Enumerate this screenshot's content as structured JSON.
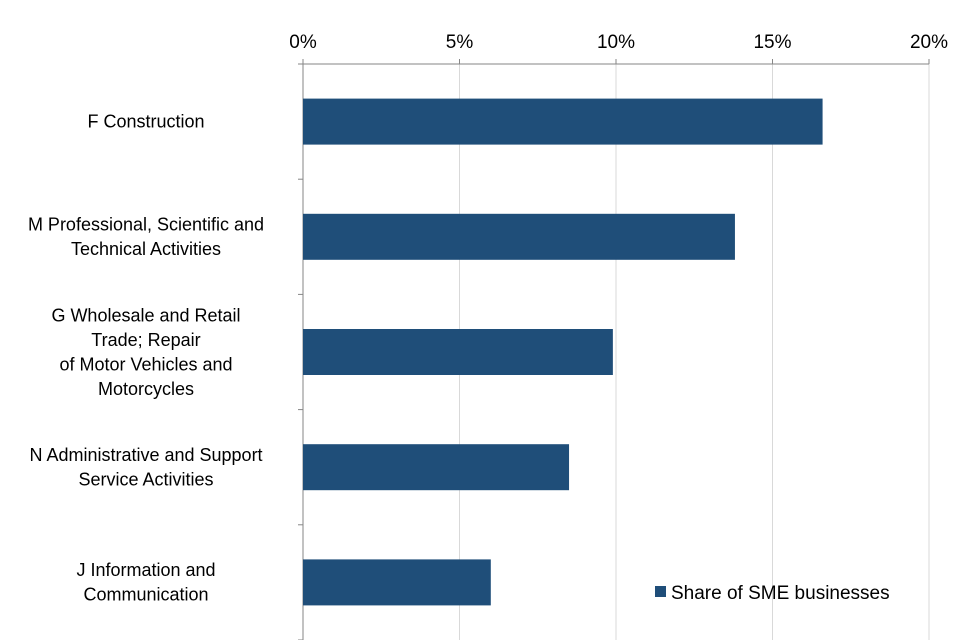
{
  "chart_data": {
    "type": "bar",
    "orientation": "horizontal",
    "title": "",
    "xlabel": "",
    "ylabel": "",
    "xlim": [
      0,
      20
    ],
    "x_axis_position": "top",
    "grid": true,
    "legend_position": "bottom-right",
    "ticks": [
      {
        "value": 0,
        "label": "0%"
      },
      {
        "value": 5,
        "label": "5%"
      },
      {
        "value": 10,
        "label": "10%"
      },
      {
        "value": 15,
        "label": "15%"
      },
      {
        "value": 20,
        "label": "20%"
      }
    ],
    "categories": [
      {
        "lines": [
          "F Construction"
        ]
      },
      {
        "lines": [
          "M Professional, Scientific and",
          "Technical Activities"
        ]
      },
      {
        "lines": [
          "G Wholesale and Retail",
          "Trade; Repair",
          "of Motor Vehicles and",
          "Motorcycles"
        ]
      },
      {
        "lines": [
          "N Administrative and Support",
          "Service Activities"
        ]
      },
      {
        "lines": [
          "J Information and",
          "Communication"
        ]
      }
    ],
    "series": [
      {
        "name": "Share of SME businesses",
        "color": "#1f4e79",
        "values": [
          16.6,
          13.8,
          9.9,
          8.5,
          6.0
        ]
      }
    ]
  }
}
